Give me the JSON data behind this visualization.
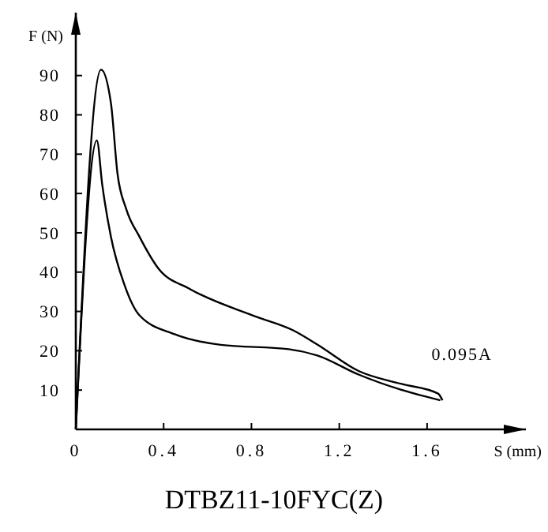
{
  "chart_data": {
    "type": "line",
    "title": "DTBZ11-10FYC(Z)",
    "xlabel": "S (mm)",
    "ylabel": "F (N)",
    "annotations": [
      "0.095A"
    ],
    "series": [
      {
        "color": "#000000",
        "x": [
          0,
          0.115,
          0.16,
          0.19,
          0.23,
          0.29,
          0.375,
          0.52,
          0.81,
          0.99,
          1.1,
          1.29,
          1.48,
          1.65,
          1.67
        ],
        "values": [
          0,
          91.5,
          83,
          65,
          56,
          49,
          41,
          35.7,
          28.9,
          25.2,
          21.6,
          14.8,
          11.6,
          9.1,
          7.4
        ]
      },
      {
        "color": "#000000",
        "x": [
          0,
          0.096,
          0.12,
          0.16,
          0.22,
          0.29,
          0.45,
          0.66,
          0.97,
          1.1,
          1.29,
          1.48,
          1.66
        ],
        "values": [
          0,
          73.5,
          62.4,
          49,
          37,
          29,
          24.2,
          21.5,
          20.4,
          18.8,
          13.9,
          10.1,
          7.4
        ]
      }
    ],
    "xlim": [
      0,
      2.05
    ],
    "ylim": [
      0,
      106
    ],
    "xticks": [
      0,
      0.4,
      0.8,
      1.2,
      1.6
    ],
    "yticks": [
      10,
      20,
      30,
      40,
      50,
      60,
      70,
      80,
      90
    ],
    "grid": false,
    "marker": "none",
    "line_style": "solid"
  }
}
